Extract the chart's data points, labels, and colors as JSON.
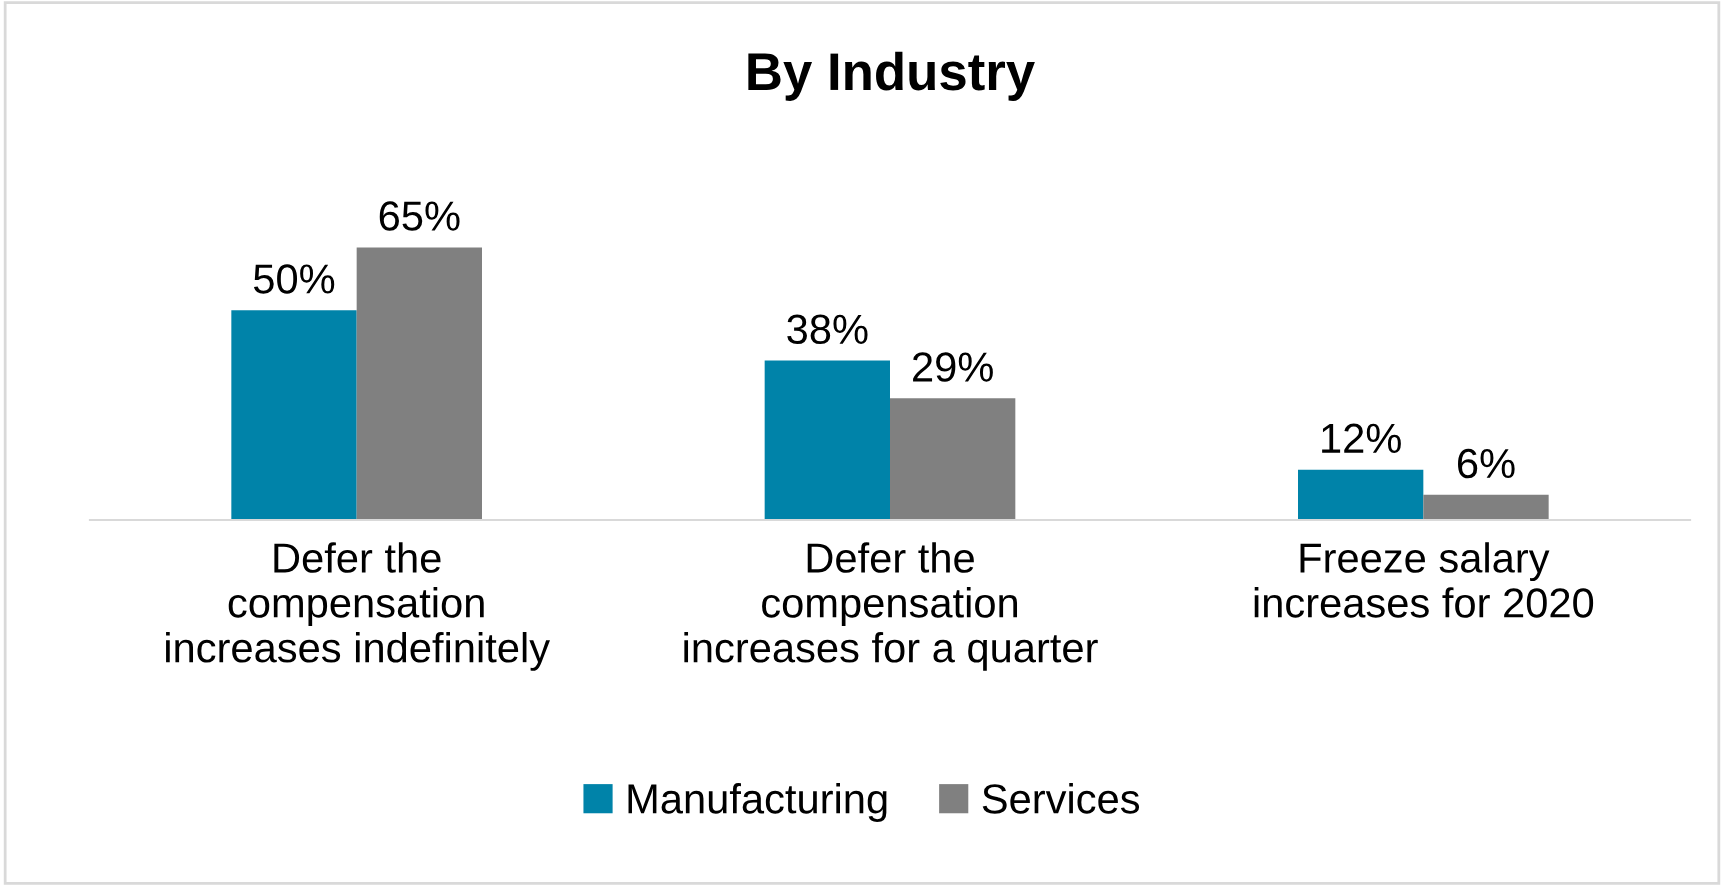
{
  "chart_data": {
    "type": "bar",
    "title": "By Industry",
    "categories": [
      "Defer the\ncompensation\nincreases indefinitely",
      "Defer the\ncompensation\nincreases for a quarter",
      "Freeze salary\nincreases for 2020"
    ],
    "series": [
      {
        "name": "Manufacturing",
        "color": "#0083a9",
        "values": [
          50,
          38,
          12
        ],
        "value_labels": [
          "50%",
          "38%",
          "12%"
        ]
      },
      {
        "name": "Services",
        "color": "#808080",
        "values": [
          65,
          29,
          6
        ],
        "value_labels": [
          "65%",
          "29%",
          "6%"
        ]
      }
    ],
    "legend": "bottom",
    "grid": false
  }
}
